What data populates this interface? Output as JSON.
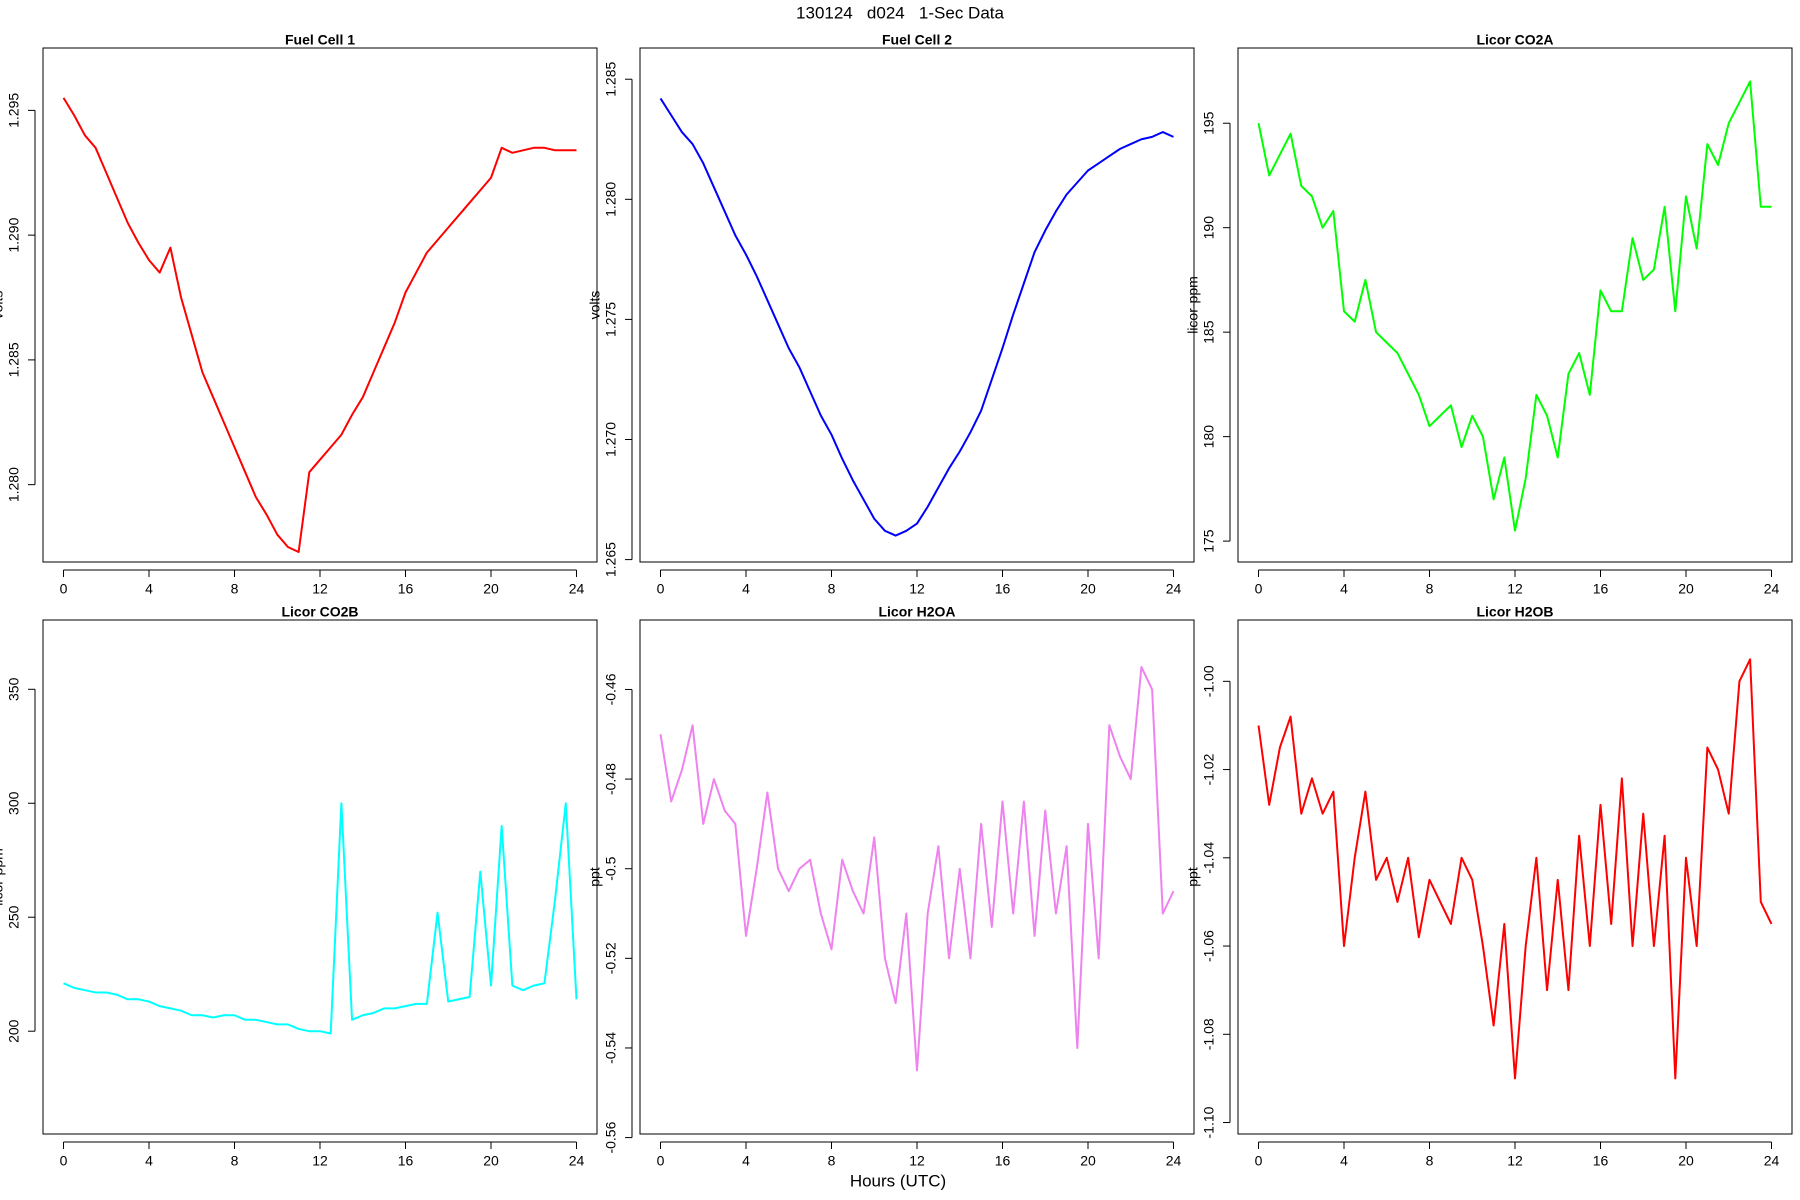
{
  "title": "130124   d024   1-Sec Data",
  "xlabel": "Hours (UTC)",
  "chart_data": [
    {
      "type": "line",
      "title": "Fuel Cell 1",
      "ylabel": "volts",
      "color": "#ff0000",
      "x": [
        0,
        0.5,
        1,
        1.5,
        2,
        2.5,
        3,
        3.5,
        4,
        4.5,
        5,
        5.5,
        6,
        6.5,
        7,
        7.5,
        8,
        8.5,
        9,
        9.5,
        10,
        10.5,
        11,
        11.5,
        12,
        12.5,
        13,
        13.5,
        14,
        14.5,
        15,
        15.5,
        16,
        16.5,
        17,
        17.5,
        18,
        18.5,
        19,
        19.5,
        20,
        20.5,
        21,
        21.5,
        22,
        22.5,
        23,
        23.5,
        24
      ],
      "values": [
        1.2955,
        1.2948,
        1.294,
        1.2935,
        1.2925,
        1.2915,
        1.2905,
        1.2897,
        1.289,
        1.2885,
        1.2895,
        1.2875,
        1.286,
        1.2845,
        1.2835,
        1.2825,
        1.2815,
        1.2805,
        1.2795,
        1.2788,
        1.278,
        1.2775,
        1.2773,
        1.2805,
        1.281,
        1.2815,
        1.282,
        1.2828,
        1.2835,
        1.2845,
        1.2855,
        1.2865,
        1.2877,
        1.2885,
        1.2893,
        1.2898,
        1.2903,
        1.2908,
        1.2913,
        1.2918,
        1.2923,
        1.2935,
        1.2933,
        1.2934,
        1.2935,
        1.2935,
        1.2934,
        1.2934,
        1.2934
      ],
      "xlim": [
        -0.96,
        24.96
      ],
      "xticks": [
        0,
        4,
        8,
        12,
        16,
        20,
        24
      ],
      "ylim": [
        1.2769,
        1.2975
      ],
      "yticks": [
        {
          "value": 1.28,
          "label": "1.280"
        },
        1.285,
        {
          "value": 1.29,
          "label": "1.290"
        },
        1.295
      ]
    },
    {
      "type": "line",
      "title": "Fuel Cell 2",
      "ylabel": "volts",
      "color": "#0000ff",
      "x": [
        0,
        0.5,
        1,
        1.5,
        2,
        2.5,
        3,
        3.5,
        4,
        4.5,
        5,
        5.5,
        6,
        6.5,
        7,
        7.5,
        8,
        8.5,
        9,
        9.5,
        10,
        10.5,
        11,
        11.5,
        12,
        12.5,
        13,
        13.5,
        14,
        14.5,
        15,
        15.5,
        16,
        16.5,
        17,
        17.5,
        18,
        18.5,
        19,
        19.5,
        20,
        20.5,
        21,
        21.5,
        22,
        22.5,
        23,
        23.5,
        24
      ],
      "values": [
        1.2842,
        1.2835,
        1.2828,
        1.2823,
        1.2815,
        1.2805,
        1.2795,
        1.2785,
        1.2777,
        1.2768,
        1.2758,
        1.2748,
        1.2738,
        1.273,
        1.272,
        1.271,
        1.2702,
        1.2692,
        1.2683,
        1.2675,
        1.2667,
        1.2662,
        1.266,
        1.2662,
        1.2665,
        1.2672,
        1.268,
        1.2688,
        1.2695,
        1.2703,
        1.2712,
        1.2725,
        1.2738,
        1.2752,
        1.2765,
        1.2778,
        1.2787,
        1.2795,
        1.2802,
        1.2807,
        1.2812,
        1.2815,
        1.2818,
        1.2821,
        1.2823,
        1.2825,
        1.2826,
        1.2828,
        1.2826
      ],
      "xlim": [
        -0.96,
        24.96
      ],
      "xticks": [
        0,
        4,
        8,
        12,
        16,
        20,
        24
      ],
      "ylim": [
        1.2649,
        1.2863
      ],
      "yticks": [
        1.265,
        {
          "value": 1.27,
          "label": "1.270"
        },
        1.275,
        {
          "value": 1.28,
          "label": "1.280"
        },
        1.285
      ]
    },
    {
      "type": "line",
      "title": "Licor CO2A",
      "ylabel": "licor-ppm",
      "color": "#00ff00",
      "x": [
        0,
        0.5,
        1,
        1.5,
        2,
        2.5,
        3,
        3.5,
        4,
        4.5,
        5,
        5.5,
        6,
        6.5,
        7,
        7.5,
        8,
        8.5,
        9,
        9.5,
        10,
        10.5,
        11,
        11.5,
        12,
        12.5,
        13,
        13.5,
        14,
        14.5,
        15,
        15.5,
        16,
        16.5,
        17,
        17.5,
        18,
        18.5,
        19,
        19.5,
        20,
        20.5,
        21,
        21.5,
        22,
        22.5,
        23,
        23.5,
        24
      ],
      "values": [
        195,
        192.5,
        193.5,
        194.5,
        192,
        191.5,
        190,
        190.8,
        186,
        185.5,
        187.5,
        185,
        184.5,
        184,
        183,
        182,
        180.5,
        181,
        181.5,
        179.5,
        181,
        180,
        177,
        179,
        175.5,
        178,
        182,
        181,
        179,
        183,
        184,
        182,
        187,
        186,
        186,
        189.5,
        187.5,
        188,
        191,
        186,
        191.5,
        189,
        194,
        193,
        195,
        196,
        197,
        191,
        191
      ],
      "xlim": [
        -0.96,
        24.96
      ],
      "xticks": [
        0,
        4,
        8,
        12,
        16,
        20,
        24
      ],
      "ylim": [
        174.0,
        198.6
      ],
      "yticks": [
        175,
        180,
        185,
        190,
        195
      ]
    },
    {
      "type": "line",
      "title": "Licor CO2B",
      "ylabel": "licor-ppm",
      "color": "#00ffff",
      "x": [
        0,
        0.5,
        1,
        1.5,
        2,
        2.5,
        3,
        3.5,
        4,
        4.5,
        5,
        5.5,
        6,
        6.5,
        7,
        7.5,
        8,
        8.5,
        9,
        9.5,
        10,
        10.5,
        11,
        11.5,
        12,
        12.5,
        13,
        13.5,
        14,
        14.5,
        15,
        15.5,
        16,
        16.5,
        17,
        17.5,
        18,
        18.5,
        19,
        19.5,
        20,
        20.5,
        21,
        21.5,
        22,
        22.5,
        23,
        23.5,
        24
      ],
      "values": [
        221,
        219,
        218,
        217,
        217,
        216,
        214,
        214,
        213,
        211,
        210,
        209,
        207,
        207,
        206,
        207,
        207,
        205,
        205,
        204,
        203,
        203,
        201,
        200,
        200,
        199,
        300,
        205,
        207,
        208,
        210,
        210,
        211,
        212,
        212,
        252,
        213,
        214,
        215,
        270,
        220,
        290,
        220,
        218,
        220,
        221,
        258,
        300,
        214
      ],
      "xlim": [
        -0.96,
        24.96
      ],
      "xticks": [
        0,
        4,
        8,
        12,
        16,
        20,
        24
      ],
      "ylim": [
        154.9,
        380.4
      ],
      "yticks": [
        200,
        250,
        300,
        350
      ]
    },
    {
      "type": "line",
      "title": "Licor H2OA",
      "ylabel": "ppt",
      "color": "#ee82ee",
      "x": [
        0,
        0.5,
        1,
        1.5,
        2,
        2.5,
        3,
        3.5,
        4,
        4.5,
        5,
        5.5,
        6,
        6.5,
        7,
        7.5,
        8,
        8.5,
        9,
        9.5,
        10,
        10.5,
        11,
        11.5,
        12,
        12.5,
        13,
        13.5,
        14,
        14.5,
        15,
        15.5,
        16,
        16.5,
        17,
        17.5,
        18,
        18.5,
        19,
        19.5,
        20,
        20.5,
        21,
        21.5,
        22,
        22.5,
        23,
        23.5,
        24
      ],
      "values": [
        -0.47,
        -0.485,
        -0.478,
        -0.468,
        -0.49,
        -0.48,
        -0.487,
        -0.49,
        -0.515,
        -0.5,
        -0.483,
        -0.5,
        -0.505,
        -0.5,
        -0.498,
        -0.51,
        -0.518,
        -0.498,
        -0.505,
        -0.51,
        -0.493,
        -0.52,
        -0.53,
        -0.51,
        -0.545,
        -0.51,
        -0.495,
        -0.52,
        -0.5,
        -0.52,
        -0.49,
        -0.513,
        -0.485,
        -0.51,
        -0.485,
        -0.515,
        -0.487,
        -0.51,
        -0.495,
        -0.54,
        -0.49,
        -0.52,
        -0.468,
        -0.475,
        -0.48,
        -0.455,
        -0.46,
        -0.51,
        -0.505
      ],
      "xlim": [
        -0.96,
        24.96
      ],
      "xticks": [
        0,
        4,
        8,
        12,
        16,
        20,
        24
      ],
      "ylim": [
        -0.5592,
        -0.4445
      ],
      "yticks": [
        -0.56,
        -0.54,
        -0.52,
        -0.5,
        -0.48,
        -0.46
      ]
    },
    {
      "type": "line",
      "title": "Licor H2OB",
      "ylabel": "ppt",
      "color": "#ff0000",
      "x": [
        0,
        0.5,
        1,
        1.5,
        2,
        2.5,
        3,
        3.5,
        4,
        4.5,
        5,
        5.5,
        6,
        6.5,
        7,
        7.5,
        8,
        8.5,
        9,
        9.5,
        10,
        10.5,
        11,
        11.5,
        12,
        12.5,
        13,
        13.5,
        14,
        14.5,
        15,
        15.5,
        16,
        16.5,
        17,
        17.5,
        18,
        18.5,
        19,
        19.5,
        20,
        20.5,
        21,
        21.5,
        22,
        22.5,
        23,
        23.5,
        24
      ],
      "values": [
        -1.01,
        -1.028,
        -1.015,
        -1.008,
        -1.03,
        -1.022,
        -1.03,
        -1.025,
        -1.06,
        -1.04,
        -1.025,
        -1.045,
        -1.04,
        -1.05,
        -1.04,
        -1.058,
        -1.045,
        -1.05,
        -1.055,
        -1.04,
        -1.045,
        -1.06,
        -1.078,
        -1.055,
        -1.09,
        -1.06,
        -1.04,
        -1.07,
        -1.045,
        -1.07,
        -1.035,
        -1.06,
        -1.028,
        -1.055,
        -1.022,
        -1.06,
        -1.03,
        -1.06,
        -1.035,
        -1.09,
        -1.04,
        -1.06,
        -1.015,
        -1.02,
        -1.03,
        -1.0,
        -0.995,
        -1.05,
        -1.055
      ],
      "xlim": [
        -0.96,
        24.96
      ],
      "xticks": [
        0,
        4,
        8,
        12,
        16,
        20,
        24
      ],
      "ylim": [
        -1.1026,
        -0.9861
      ],
      "yticks": [
        {
          "value": -1.1,
          "label": "-1.10"
        },
        -1.08,
        -1.06,
        -1.04,
        -1.02,
        {
          "value": -1.0,
          "label": "-1.00"
        }
      ]
    }
  ]
}
